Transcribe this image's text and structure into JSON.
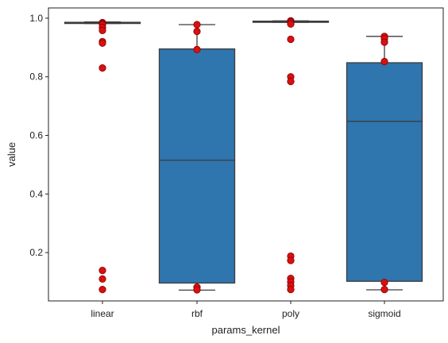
{
  "chart_data": {
    "type": "box",
    "xlabel": "params_kernel",
    "ylabel": "value",
    "ylim": [
      0.035,
      1.035
    ],
    "yticks": [
      0.2,
      0.4,
      0.6,
      0.8,
      1.0
    ],
    "ytick_labels": [
      "0.2",
      "0.4",
      "0.6",
      "0.8",
      "1.0"
    ],
    "categories": [
      "linear",
      "rbf",
      "poly",
      "sigmoid"
    ],
    "grid": false,
    "colors": {
      "box": "#2f75ae",
      "edge": "#3d3d3d",
      "point_fill": "#d91010",
      "point_edge": "#8a0000"
    },
    "boxes": [
      {
        "category": "linear",
        "whisker_low": 0.982,
        "q1": 0.982,
        "median": 0.984,
        "q3": 0.986,
        "whisker_high": 0.987
      },
      {
        "category": "rbf",
        "whisker_low": 0.072,
        "q1": 0.096,
        "median": 0.515,
        "q3": 0.895,
        "whisker_high": 0.978
      },
      {
        "category": "poly",
        "whisker_low": 0.986,
        "q1": 0.986,
        "median": 0.988,
        "q3": 0.99,
        "whisker_high": 0.991
      },
      {
        "category": "sigmoid",
        "whisker_low": 0.073,
        "q1": 0.102,
        "median": 0.648,
        "q3": 0.848,
        "whisker_high": 0.938
      }
    ],
    "points": [
      {
        "category": "linear",
        "values": [
          0.985,
          0.983,
          0.981,
          0.978,
          0.968,
          0.958,
          0.92,
          0.915,
          0.83,
          0.139,
          0.11,
          0.074
        ]
      },
      {
        "category": "rbf",
        "values": [
          0.978,
          0.955,
          0.893,
          0.082,
          0.073
        ]
      },
      {
        "category": "poly",
        "values": [
          0.991,
          0.989,
          0.988,
          0.984,
          0.98,
          0.928,
          0.8,
          0.784,
          0.188,
          0.173,
          0.112,
          0.1,
          0.088,
          0.074
        ]
      },
      {
        "category": "sigmoid",
        "values": [
          0.938,
          0.93,
          0.918,
          0.852,
          0.098,
          0.074
        ]
      }
    ]
  }
}
